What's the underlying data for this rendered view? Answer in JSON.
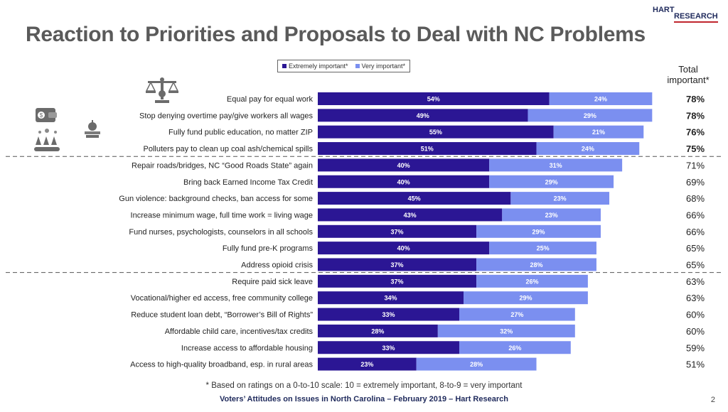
{
  "title": "Reaction to Priorities and Proposals to Deal with NC Problems",
  "logo": {
    "line1": "HART",
    "line2": "RESEARCH"
  },
  "total_header": {
    "line1": "Total",
    "line2": "important*"
  },
  "colors": {
    "extremely": "#2b1694",
    "very": "#7b8ff0",
    "title": "#5a5a5a",
    "footer": "#1f2a5c"
  },
  "icons": [
    "scales-of-justice-icon",
    "wallet-icon",
    "apple-books-icon",
    "power-plant-pollution-icon"
  ],
  "footnote": "* Based on ratings on a 0-to-10 scale: 10 = extremely important, 8-to-9 = very important",
  "footer": "Voters’ Attitudes on Issues in North Carolina – February 2019 – Hart Research",
  "page_number": "2",
  "chart_data": {
    "type": "bar",
    "orientation": "horizontal",
    "stacked": true,
    "title": "Reaction to Priorities and Proposals to Deal with NC Problems",
    "legend": [
      "Extremely important*",
      "Very important*"
    ],
    "legend_position": "top-center",
    "categories": [
      "Equal pay for equal work",
      "Stop denying overtime pay/give workers all wages",
      "Fully fund public education, no matter ZIP",
      "Polluters pay to clean up coal ash/chemical spills",
      "Repair roads/bridges, NC “Good Roads State” again",
      "Bring back Earned Income Tax Credit",
      "Gun violence:  background checks, ban access for some",
      "Increase minimum wage, full time work = living wage",
      "Fund nurses, psychologists, counselors in all schools",
      "Fully fund pre-K programs",
      "Address opioid crisis",
      "Require paid sick leave",
      "Vocational/higher ed access, free community college",
      "Reduce student loan debt, “Borrower’s Bill of Rights”",
      "Affordable child care, incentives/tax credits",
      "Increase access to affordable housing",
      "Access to high-quality broadband, esp. in rural areas"
    ],
    "series": [
      {
        "name": "Extremely important*",
        "values": [
          54,
          49,
          55,
          51,
          40,
          40,
          45,
          43,
          37,
          40,
          37,
          37,
          34,
          33,
          28,
          33,
          23
        ]
      },
      {
        "name": "Very important*",
        "values": [
          24,
          29,
          21,
          24,
          31,
          29,
          23,
          23,
          29,
          25,
          28,
          26,
          29,
          27,
          32,
          26,
          28
        ]
      }
    ],
    "totals": [
      78,
      78,
      76,
      75,
      71,
      69,
      68,
      66,
      66,
      65,
      65,
      63,
      63,
      60,
      60,
      59,
      51
    ],
    "totals_bold_count": 4,
    "group_dividers_after": [
      3,
      10
    ],
    "xlim": [
      0,
      100
    ]
  }
}
